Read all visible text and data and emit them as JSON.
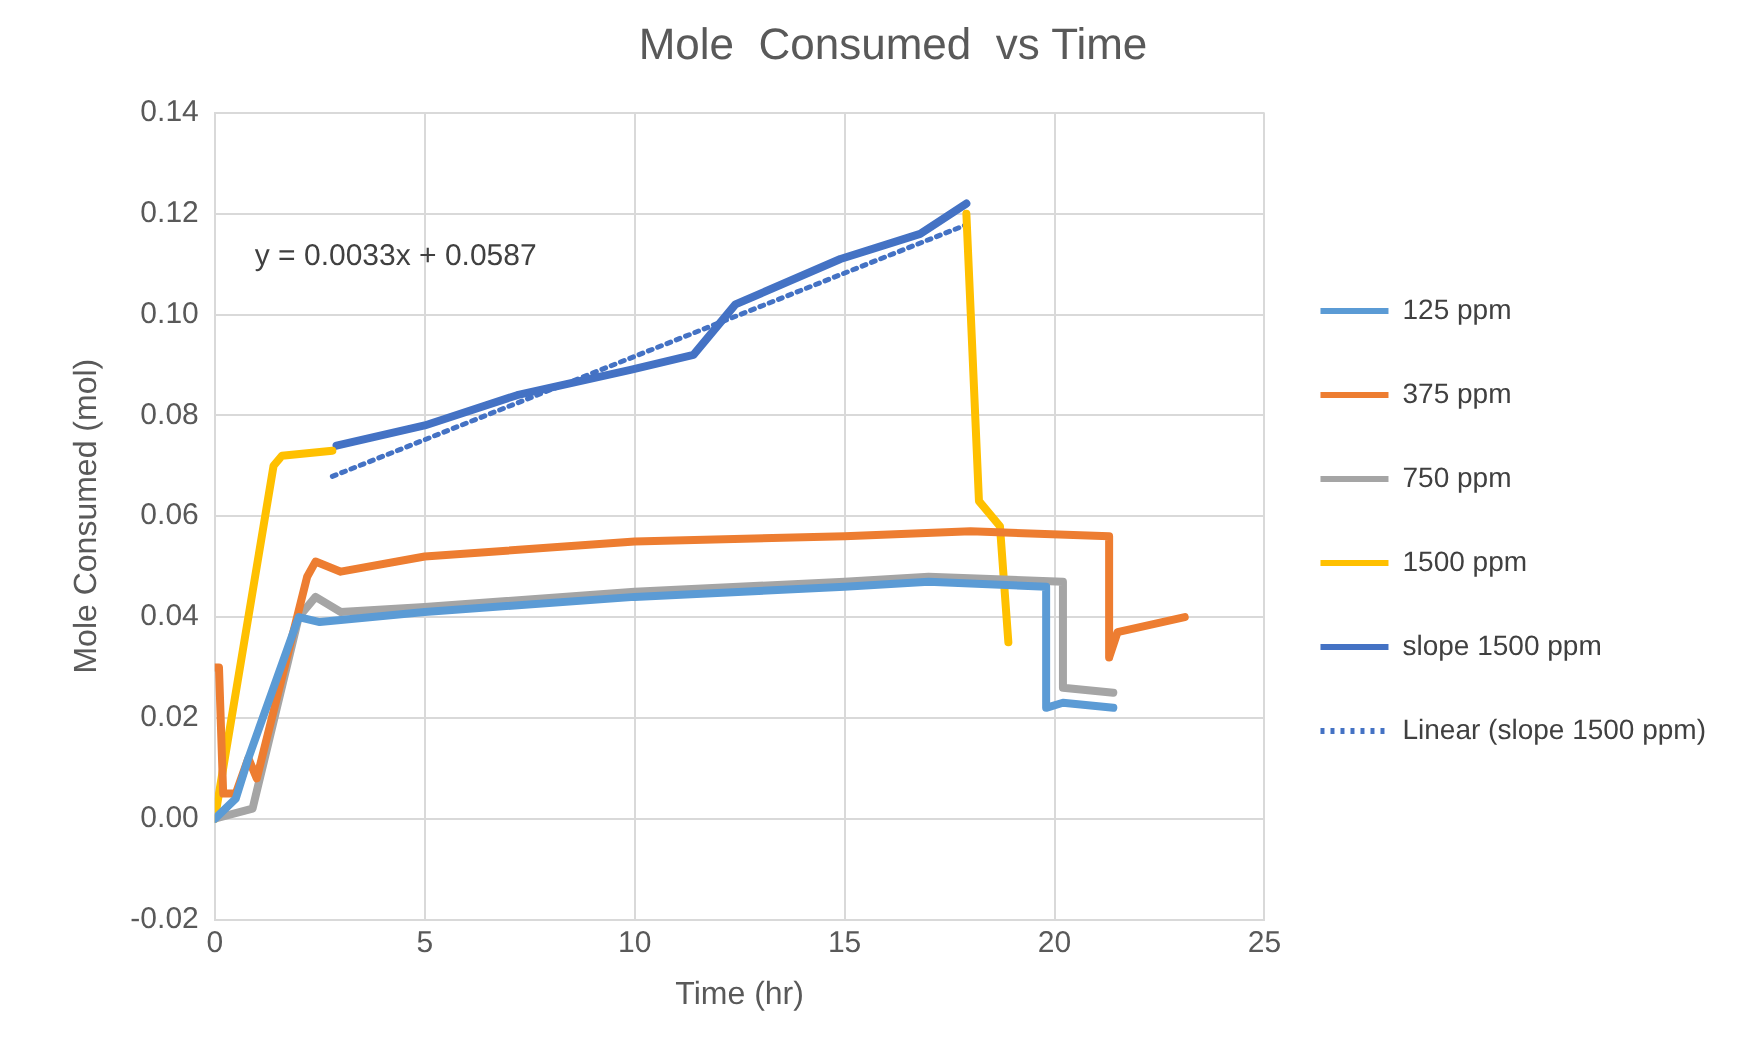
{
  "chart_data": {
    "type": "line",
    "title": "Mole  Consumed  vs Time",
    "xlabel": "Time (hr)",
    "ylabel": "Mole Consumed (mol)",
    "xlim": [
      0,
      25
    ],
    "xticks": [
      0,
      5,
      10,
      15,
      20,
      25
    ],
    "ylim": [
      -0.02,
      0.14
    ],
    "yticks": [
      {
        "value": -0.02,
        "label": "-0.02"
      },
      {
        "value": 0,
        "label": "0.00"
      },
      {
        "value": 0.02,
        "label": "0.02"
      },
      {
        "value": 0.04,
        "label": "0.04"
      },
      {
        "value": 0.06,
        "label": "0.06"
      },
      {
        "value": 0.08,
        "label": "0.08"
      },
      {
        "value": 0.1,
        "label": "0.10"
      },
      {
        "value": 0.12,
        "label": "0.12"
      },
      {
        "value": 0.14,
        "label": "0.14"
      }
    ],
    "grid": true,
    "legend": "right",
    "marker": "none",
    "annotations": [
      "y = 0.0033x + 0.0587"
    ],
    "series": [
      {
        "name": "125 ppm",
        "color": "#5b9bd5",
        "x": [
          0,
          0.5,
          0.8,
          2,
          2.5,
          5,
          10,
          15,
          17,
          19.8,
          19.8,
          20.2,
          21.4
        ],
        "values": [
          0,
          0.004,
          0.012,
          0.04,
          0.039,
          0.041,
          0.044,
          0.046,
          0.047,
          0.046,
          0.022,
          0.023,
          0.022
        ]
      },
      {
        "name": "375 ppm",
        "color": "#ed7d31",
        "x": [
          0,
          0.1,
          0.2,
          0.5,
          0.8,
          1,
          2.2,
          2.4,
          3,
          5,
          10,
          15,
          18,
          21.3,
          21.3,
          21.5,
          23.1
        ],
        "values": [
          0.03,
          0.03,
          0.005,
          0.005,
          0.012,
          0.008,
          0.048,
          0.051,
          0.049,
          0.052,
          0.055,
          0.056,
          0.057,
          0.056,
          0.032,
          0.037,
          0.04
        ]
      },
      {
        "name": "750 ppm",
        "color": "#a5a5a5",
        "x": [
          0,
          0.9,
          2,
          2.4,
          3,
          5,
          10,
          15,
          17,
          20.2,
          20.2,
          21.4
        ],
        "values": [
          0,
          0.002,
          0.04,
          0.044,
          0.041,
          0.042,
          0.045,
          0.047,
          0.048,
          0.047,
          0.026,
          0.025
        ]
      },
      {
        "name": "1500 ppm",
        "color": "#ffc000",
        "x": [
          0,
          1.4,
          1.6,
          2.8,
          10,
          17.9,
          18.2,
          18.7,
          18.9
        ],
        "values": [
          0,
          0.07,
          0.072,
          0.073,
          null,
          0.12,
          0.063,
          0.058,
          0.035
        ]
      },
      {
        "name": "slope 1500 ppm",
        "color": "#4472c4",
        "x": [
          2.9,
          5,
          7.2,
          9.9,
          11.4,
          12.4,
          14.9,
          16.8,
          17.9
        ],
        "values": [
          0.074,
          0.078,
          0.084,
          0.089,
          0.092,
          0.102,
          0.111,
          0.116,
          0.122
        ]
      },
      {
        "name": "Linear (slope 1500 ppm)",
        "color": "#4472c4",
        "line_style": "dotted",
        "x": [
          2.8,
          17.9
        ],
        "values": [
          0.0679,
          0.1178
        ]
      }
    ]
  }
}
